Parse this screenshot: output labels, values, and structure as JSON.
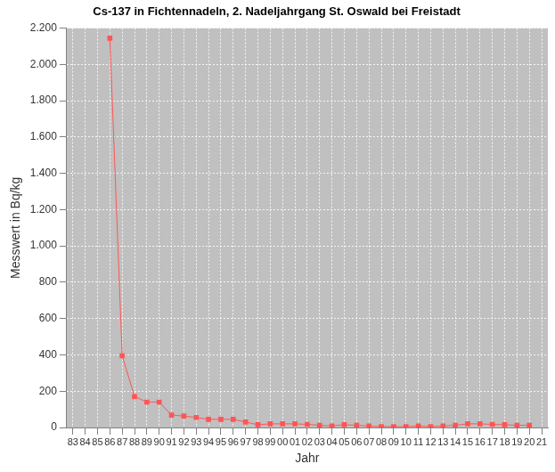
{
  "chart_data": {
    "type": "line",
    "title": "Cs-137 in Fichtennadeln, 2. Nadeljahrgang St. Oswald bei Freistadt",
    "x_label": "Jahr",
    "y_label": "Messwert in Bq/kg",
    "categories": [
      "83",
      "84",
      "85",
      "86",
      "87",
      "88",
      "89",
      "90",
      "91",
      "92",
      "93",
      "94",
      "95",
      "96",
      "97",
      "98",
      "99",
      "00",
      "01",
      "02",
      "03",
      "04",
      "05",
      "06",
      "07",
      "08",
      "09",
      "10",
      "11",
      "12",
      "13",
      "14",
      "15",
      "16",
      "17",
      "18",
      "19",
      "20",
      "21"
    ],
    "values": [
      null,
      null,
      null,
      2145,
      395,
      170,
      140,
      140,
      68,
      63,
      55,
      45,
      45,
      45,
      30,
      15,
      20,
      20,
      20,
      17,
      12,
      8,
      15,
      12,
      8,
      5,
      5,
      5,
      8,
      5,
      8,
      12,
      20,
      20,
      17,
      15,
      12,
      12,
      null
    ],
    "color": "#ff5555",
    "marker": "square",
    "line_style": "solid",
    "ylim": [
      0,
      2200
    ],
    "yticks": [
      0,
      200,
      400,
      600,
      800,
      {
        "value": 1000,
        "label": "1.000"
      },
      {
        "value": 1200,
        "label": "1.200"
      },
      {
        "value": 1400,
        "label": "1.400"
      },
      {
        "value": 1600,
        "label": "1.600"
      },
      {
        "value": 1800,
        "label": "1.800"
      },
      {
        "value": 2000,
        "label": "2.000"
      },
      {
        "value": 2200,
        "label": "2.200"
      }
    ],
    "grid": true
  }
}
